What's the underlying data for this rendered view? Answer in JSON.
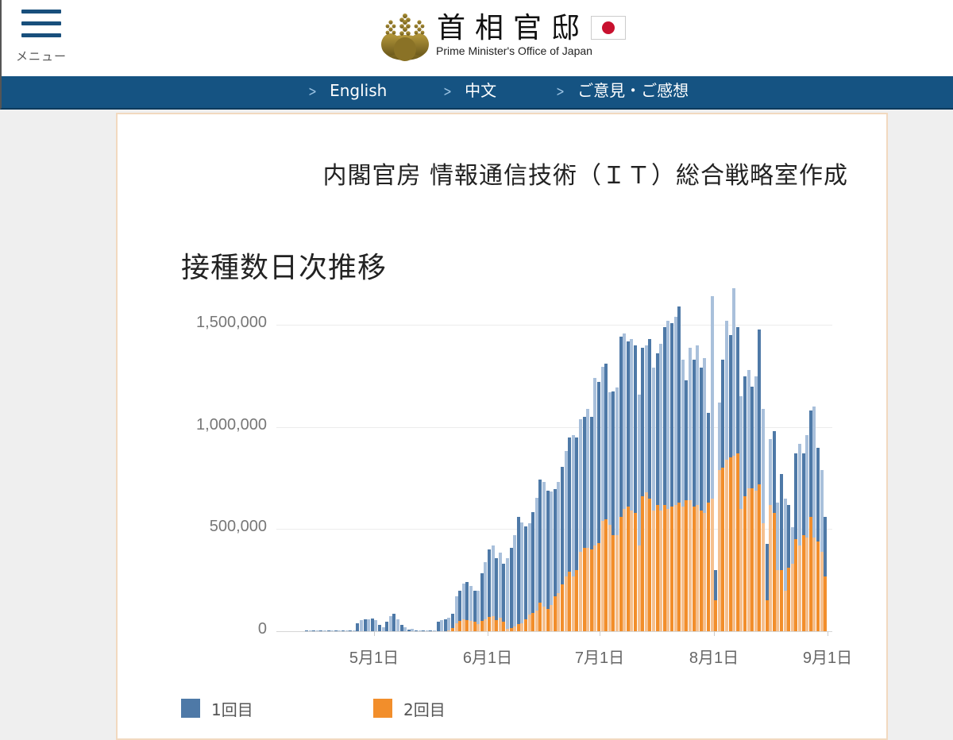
{
  "header": {
    "menu_label": "メニュー",
    "logo_kanji": "首相官邸",
    "logo_english": "Prime Minister's Office of Japan"
  },
  "nav": {
    "items": [
      {
        "label": "English"
      },
      {
        "label": "中文"
      },
      {
        "label": "ご意見・ご感想"
      }
    ]
  },
  "content": {
    "credit": "内閣官房 情報通信技術（ＩＴ）総合戦略室作成",
    "chart_title": "接種数日次推移"
  },
  "colors": {
    "first_dose": "#4e79a7",
    "first_dose_light": "#a9c0db",
    "second_dose": "#f28e2b",
    "second_dose_light": "#f5c08f",
    "nav_bg": "#155382"
  },
  "chart_data": {
    "type": "bar",
    "stacked": true,
    "title": "接種数日次推移",
    "xlabel": "",
    "ylabel": "",
    "ylim": [
      0,
      1600000
    ],
    "yticks": [
      0,
      500000,
      1000000,
      1500000
    ],
    "ytick_labels": [
      "0",
      "500,000",
      "1,000,000",
      "1,500,000"
    ],
    "xtick_labels": [
      "5月1日",
      "6月1日",
      "7月1日",
      "8月1日",
      "9月1日"
    ],
    "x_start": "4月12日",
    "x_end": "9月1日",
    "legend": [
      {
        "name": "1回目",
        "color": "#4e79a7"
      },
      {
        "name": "2回目",
        "color": "#f28e2b"
      }
    ],
    "legend_position": "bottom",
    "grid": true,
    "series": [
      {
        "name": "1回目",
        "values": [
          3000,
          3000,
          3000,
          3000,
          3000,
          3000,
          3000,
          3000,
          3000,
          3000,
          3000,
          3000,
          3000,
          3000,
          40000,
          55000,
          60000,
          58000,
          62000,
          55000,
          30000,
          20000,
          45000,
          75000,
          85000,
          60000,
          30000,
          20000,
          8000,
          12000,
          5000,
          3000,
          3000,
          3000,
          3000,
          3000,
          45000,
          55000,
          60000,
          62000,
          70000,
          130000,
          150000,
          175000,
          185000,
          170000,
          155000,
          165000,
          235000,
          280000,
          330000,
          345000,
          305000,
          320000,
          285000,
          350000,
          395000,
          445000,
          525000,
          495000,
          455000,
          450000,
          495000,
          555000,
          605000,
          610000,
          580000,
          555000,
          525000,
          545000,
          575000,
          615000,
          660000,
          690000,
          650000,
          650000,
          640000,
          680000,
          650000,
          820000,
          790000,
          755000,
          760000,
          650000,
          705000,
          725000,
          885000,
          860000,
          810000,
          840000,
          820000,
          740000,
          730000,
          720000,
          780000,
          700000,
          740000,
          820000,
          870000,
          920000,
          900000,
          920000,
          960000,
          720000,
          590000,
          750000,
          720000,
          780000,
          700000,
          760000,
          440000,
          990000,
          150000,
          330000,
          530000,
          680000,
          600000,
          820000,
          620000,
          550000,
          590000,
          580000,
          500000,
          560000,
          760000,
          560000,
          280000,
          320000,
          400000,
          330000,
          470000,
          450000,
          310000,
          180000,
          420000,
          500000,
          400000,
          500000,
          520000,
          640000,
          460000,
          400000,
          290000
        ],
        "color": "#4e79a7"
      },
      {
        "name": "2回目",
        "values": [
          0,
          0,
          0,
          0,
          0,
          0,
          0,
          0,
          0,
          0,
          0,
          0,
          0,
          0,
          0,
          0,
          0,
          0,
          0,
          0,
          0,
          0,
          0,
          0,
          0,
          0,
          0,
          0,
          0,
          0,
          0,
          0,
          0,
          0,
          0,
          0,
          0,
          0,
          0,
          5000,
          15000,
          40000,
          50000,
          60000,
          55000,
          50000,
          45000,
          35000,
          50000,
          60000,
          70000,
          75000,
          55000,
          65000,
          45000,
          10000,
          15000,
          25000,
          35000,
          40000,
          60000,
          80000,
          90000,
          100000,
          140000,
          120000,
          110000,
          130000,
          170000,
          185000,
          230000,
          270000,
          290000,
          270000,
          300000,
          390000,
          410000,
          410000,
          400000,
          420000,
          430000,
          540000,
          550000,
          520000,
          470000,
          470000,
          560000,
          600000,
          610000,
          590000,
          580000,
          420000,
          660000,
          680000,
          650000,
          590000,
          620000,
          590000,
          620000,
          600000,
          610000,
          620000,
          630000,
          610000,
          640000,
          640000,
          610000,
          620000,
          590000,
          580000,
          630000,
          650000,
          150000,
          790000,
          800000,
          840000,
          850000,
          860000,
          870000,
          600000,
          660000,
          700000,
          700000,
          690000,
          720000,
          530000,
          150000,
          620000,
          580000,
          300000,
          300000,
          200000,
          310000,
          330000,
          450000,
          420000,
          470000,
          460000,
          560000,
          460000,
          440000,
          390000,
          270000
        ],
        "color": "#f28e2b"
      }
    ]
  }
}
